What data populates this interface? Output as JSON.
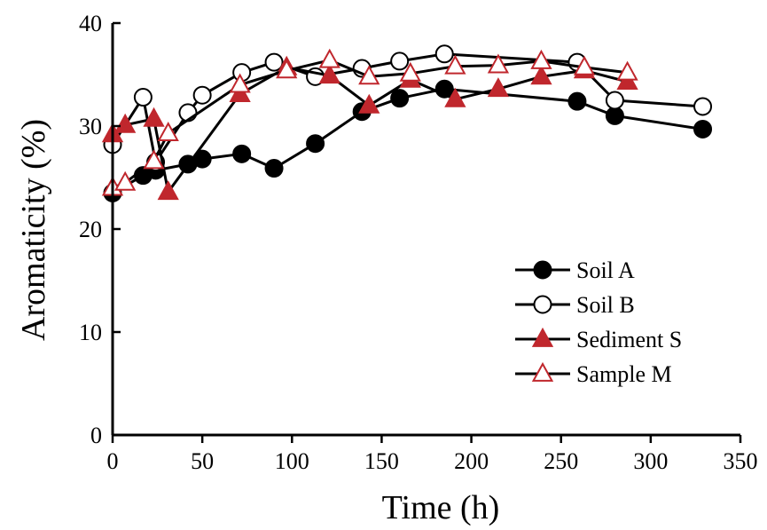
{
  "chart_data": {
    "type": "line",
    "title": "",
    "xlabel": "Time (h)",
    "ylabel": "Aromaticity (%)",
    "xlim": [
      0,
      350
    ],
    "ylim": [
      0,
      40
    ],
    "x_ticks": [
      0,
      50,
      100,
      150,
      200,
      250,
      300,
      350
    ],
    "y_ticks": [
      0,
      10,
      20,
      30,
      40
    ],
    "grid": false,
    "legend_position": "bottom-right",
    "series": [
      {
        "name": "Soil A",
        "marker": "circle",
        "fill": "#000000",
        "stroke": "#000000",
        "points": [
          [
            0,
            23.5
          ],
          [
            17,
            25.2
          ],
          [
            24,
            25.7
          ],
          [
            42,
            26.3
          ],
          [
            50,
            26.8
          ],
          [
            72,
            27.3
          ],
          [
            90,
            25.9
          ],
          [
            113,
            28.3
          ],
          [
            139,
            31.4
          ],
          [
            160,
            32.7
          ],
          [
            185,
            33.6
          ],
          [
            259,
            32.4
          ],
          [
            280,
            31.0
          ],
          [
            329,
            29.7
          ]
        ]
      },
      {
        "name": "Soil B",
        "marker": "circle",
        "fill": "#ffffff",
        "stroke": "#000000",
        "points": [
          [
            0,
            28.2
          ],
          [
            17,
            32.8
          ],
          [
            24,
            26.5
          ],
          [
            42,
            31.3
          ],
          [
            50,
            33.0
          ],
          [
            72,
            35.2
          ],
          [
            90,
            36.2
          ],
          [
            113,
            34.8
          ],
          [
            139,
            35.6
          ],
          [
            160,
            36.3
          ],
          [
            185,
            37.0
          ],
          [
            259,
            36.2
          ],
          [
            280,
            32.5
          ],
          [
            329,
            31.9
          ]
        ]
      },
      {
        "name": "Sediment S",
        "marker": "triangle",
        "fill": "#c0272d",
        "stroke": "#c0272d",
        "points": [
          [
            0,
            29.2
          ],
          [
            7,
            30.1
          ],
          [
            23,
            30.7
          ],
          [
            31,
            23.6
          ],
          [
            71,
            33.1
          ],
          [
            97,
            35.7
          ],
          [
            121,
            34.9
          ],
          [
            143,
            32.0
          ],
          [
            166,
            34.5
          ],
          [
            191,
            32.6
          ],
          [
            215,
            33.6
          ],
          [
            239,
            34.8
          ],
          [
            263,
            35.4
          ],
          [
            287,
            34.3
          ]
        ]
      },
      {
        "name": "Sample M",
        "marker": "triangle",
        "fill": "#ffffff",
        "stroke": "#c0272d",
        "points": [
          [
            0,
            24.0
          ],
          [
            7,
            24.5
          ],
          [
            23,
            26.6
          ],
          [
            31,
            29.3
          ],
          [
            71,
            34.0
          ],
          [
            97,
            35.4
          ],
          [
            121,
            36.4
          ],
          [
            143,
            34.8
          ],
          [
            166,
            35.1
          ],
          [
            191,
            35.8
          ],
          [
            215,
            35.9
          ],
          [
            239,
            36.3
          ],
          [
            263,
            35.7
          ],
          [
            287,
            35.2
          ]
        ]
      }
    ]
  }
}
